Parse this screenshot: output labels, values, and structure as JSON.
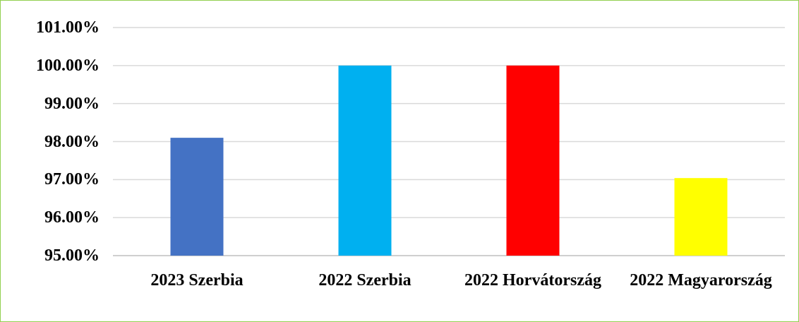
{
  "chart_data": {
    "type": "bar",
    "categories": [
      "2023 Szerbia",
      "2022 Szerbia",
      "2022 Horvátország",
      "2022 Magyarország"
    ],
    "values": [
      98.1,
      100,
      100,
      97.04
    ],
    "colors": [
      "#4472c4",
      "#00b0f0",
      "#ff0000",
      "#ffff00"
    ],
    "ylim": [
      95,
      101
    ],
    "yticks": [
      {
        "value": 95,
        "label": "95.00%"
      },
      {
        "value": 96,
        "label": "96.00%"
      },
      {
        "value": 97,
        "label": "97.00%"
      },
      {
        "value": 98,
        "label": "98.00%"
      },
      {
        "value": 99,
        "label": "99.00%"
      },
      {
        "value": 100,
        "label": "100.00%"
      },
      {
        "value": 101,
        "label": "101.00%"
      }
    ],
    "grid": true
  }
}
